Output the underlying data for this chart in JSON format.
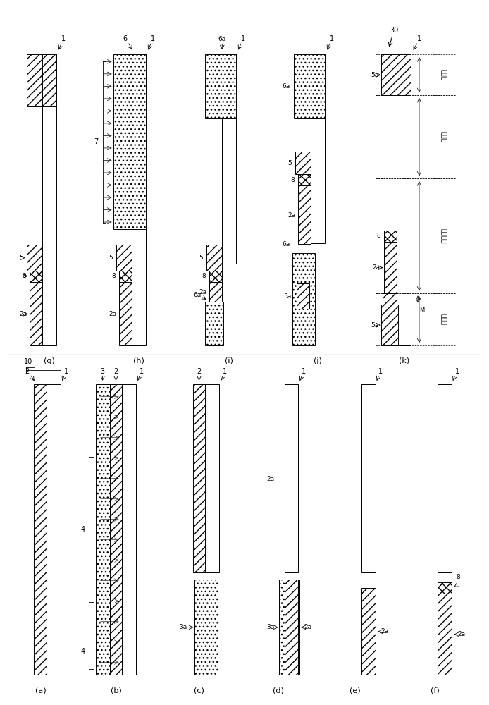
{
  "figure_size": [
    6.94,
    10.0
  ],
  "dpi": 100,
  "bg_color": "#ffffff",
  "panels_top_labels": [
    "(g)",
    "(h)",
    "(i)",
    "(j)",
    "(k)"
  ],
  "panels_bot_labels": [
    "(a)",
    "(b)",
    "(c)",
    "(d)",
    "(e)",
    "(f)"
  ]
}
